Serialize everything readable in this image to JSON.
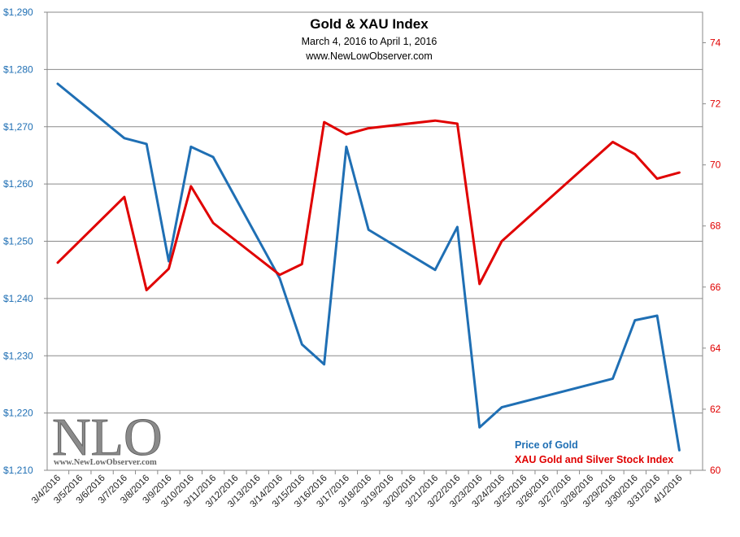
{
  "chart_data": {
    "type": "line",
    "title": "Gold & XAU Index",
    "subtitle": "March 4, 2016  to April 1, 2016",
    "source": "www.NewLowObserver.com",
    "categories": [
      "3/4/2016",
      "3/5/2016",
      "3/6/2016",
      "3/7/2016",
      "3/8/2016",
      "3/9/2016",
      "3/10/2016",
      "3/11/2016",
      "3/12/2016",
      "3/13/2016",
      "3/14/2016",
      "3/15/2016",
      "3/16/2016",
      "3/17/2016",
      "3/18/2016",
      "3/19/2016",
      "3/20/2016",
      "3/21/2016",
      "3/22/2016",
      "3/23/2016",
      "3/24/2016",
      "3/25/2016",
      "3/26/2016",
      "3/27/2016",
      "3/28/2016",
      "3/29/2016",
      "3/30/2016",
      "3/31/2016",
      "4/1/2016"
    ],
    "left_axis": {
      "min": 1210,
      "max": 1290,
      "step": 10,
      "tick_labels": [
        "$1,210",
        "$1,220",
        "$1,230",
        "$1,240",
        "$1,250",
        "$1,260",
        "$1,270",
        "$1,280",
        "$1,290"
      ],
      "color": "#1f6fb4"
    },
    "right_axis": {
      "min": 60,
      "max": 75,
      "step": 2,
      "tick_labels": [
        "60",
        "62",
        "64",
        "66",
        "68",
        "70",
        "72",
        "74"
      ],
      "color": "#e00000"
    },
    "series": [
      {
        "name": "Price of Gold",
        "axis": "left",
        "color": "#1f6fb4",
        "points": [
          [
            0,
            1277.5
          ],
          [
            3,
            1268
          ],
          [
            4,
            1267
          ],
          [
            5,
            1246.5
          ],
          [
            6,
            1266.5
          ],
          [
            7,
            1264.7
          ],
          [
            10,
            1243.5
          ],
          [
            11,
            1232
          ],
          [
            12,
            1228.5
          ],
          [
            13,
            1266.5
          ],
          [
            14,
            1252
          ],
          [
            17,
            1245
          ],
          [
            18,
            1252.5
          ],
          [
            19,
            1217.5
          ],
          [
            20,
            1221
          ],
          [
            25,
            1226
          ],
          [
            26,
            1236.2
          ],
          [
            27,
            1237
          ],
          [
            28,
            1213.5
          ]
        ]
      },
      {
        "name": "XAU Gold and Silver Stock Index",
        "axis": "right",
        "color": "#e00000",
        "points": [
          [
            0,
            66.8
          ],
          [
            3,
            68.95
          ],
          [
            4,
            65.9
          ],
          [
            5,
            66.6
          ],
          [
            6,
            69.3
          ],
          [
            7,
            68.1
          ],
          [
            10,
            66.4
          ],
          [
            11,
            66.75
          ],
          [
            12,
            71.4
          ],
          [
            13,
            71
          ],
          [
            14,
            71.2
          ],
          [
            17,
            71.45
          ],
          [
            18,
            71.35
          ],
          [
            19,
            66.1
          ],
          [
            20,
            67.5
          ],
          [
            25,
            70.75
          ],
          [
            26,
            70.35
          ],
          [
            27,
            69.55
          ],
          [
            28,
            69.75
          ]
        ]
      }
    ],
    "grid": true,
    "legend_position": "bottom-right"
  },
  "legend": {
    "gold_label": "Price of Gold",
    "xau_label": "XAU Gold and Silver Stock Index"
  },
  "watermark": {
    "logo": "NLO",
    "url": "www.NewLowObserver.com"
  }
}
